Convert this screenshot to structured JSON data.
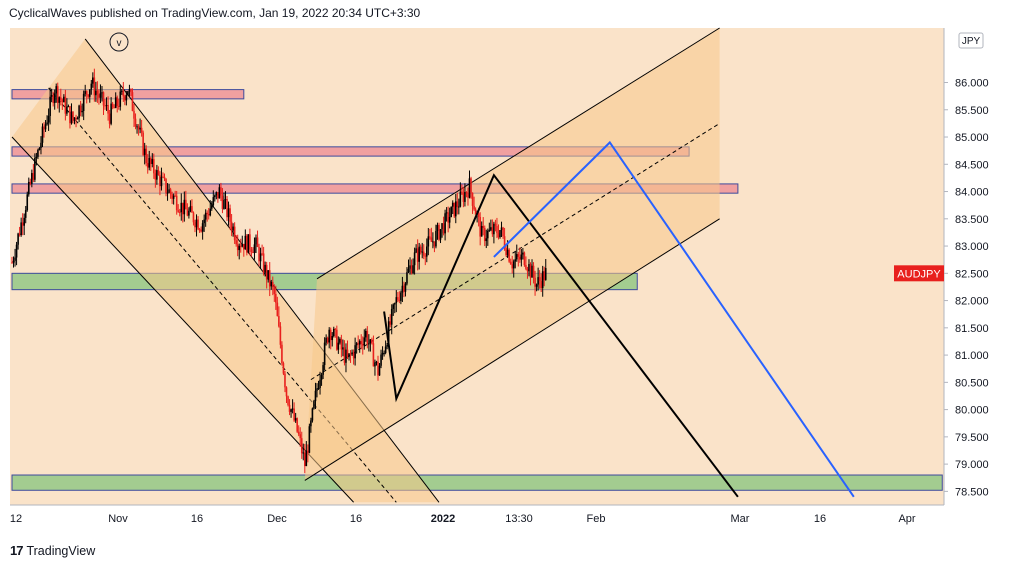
{
  "header": {
    "text": "CyclicalWaves published on TradingView.com, Jan 19, 2022 20:34 UTC+3:30"
  },
  "footer": {
    "logo": "17",
    "brand": "TradingView"
  },
  "colors": {
    "background": "#fae3c9",
    "candle_up": "#000000",
    "candle_down": "#e8201d",
    "channel_fill": "#f7c98b",
    "red_zone": "#f0a0a0",
    "green_zone": "#a3cc90",
    "blue_line": "#2962ff",
    "symbol_badge": "#e8201d"
  },
  "chart_data": {
    "type": "candlestick",
    "symbol": "AUDJPY",
    "currency_label": "JPY",
    "wave_label": "v",
    "ylim": [
      78.25,
      87.0
    ],
    "y_ticks": [
      "86.000",
      "85.500",
      "85.000",
      "84.500",
      "84.000",
      "83.500",
      "83.000",
      "82.500",
      "82.000",
      "81.500",
      "81.000",
      "80.500",
      "80.000",
      "79.500",
      "79.000",
      "78.500"
    ],
    "x_ticks": [
      "12",
      "Nov",
      "16",
      "Dec",
      "16",
      "2022",
      "13:30",
      "Feb",
      "Mar",
      "16",
      "Apr"
    ],
    "price_badge": "AUDJPY",
    "price_badge_value": 82.5,
    "zones": [
      {
        "kind": "resistance",
        "low": 85.7,
        "high": 85.87,
        "start": 0,
        "end": 76
      },
      {
        "kind": "resistance",
        "low": 84.65,
        "high": 84.82,
        "start": 0,
        "end": 222
      },
      {
        "kind": "resistance",
        "low": 83.97,
        "high": 84.14,
        "start": 0,
        "end": 238
      },
      {
        "kind": "support",
        "low": 82.2,
        "high": 82.5,
        "start": 0,
        "end": 205
      },
      {
        "kind": "support",
        "low": 78.52,
        "high": 78.8,
        "start": 0,
        "end": 305
      }
    ],
    "series": [
      {
        "points": [
          [
            0,
            82.7
          ],
          [
            8,
            84.6
          ],
          [
            14,
            85.9
          ],
          [
            20,
            85.3
          ],
          [
            26,
            86.0
          ],
          [
            32,
            85.4
          ],
          [
            38,
            85.9
          ],
          [
            44,
            84.6
          ],
          [
            50,
            84.1
          ],
          [
            56,
            83.7
          ],
          [
            62,
            83.4
          ],
          [
            68,
            84.0
          ],
          [
            74,
            83.1
          ],
          [
            80,
            83.0
          ],
          [
            86,
            82.1
          ],
          [
            90,
            80.3
          ],
          [
            94,
            79.5
          ],
          [
            96,
            79.0
          ],
          [
            100,
            80.4
          ],
          [
            104,
            81.5
          ],
          [
            110,
            80.9
          ],
          [
            116,
            81.4
          ],
          [
            120,
            80.7
          ],
          [
            126,
            82.0
          ],
          [
            132,
            82.8
          ],
          [
            138,
            83.1
          ],
          [
            144,
            83.6
          ],
          [
            150,
            84.1
          ],
          [
            154,
            83.2
          ],
          [
            160,
            83.3
          ],
          [
            164,
            82.7
          ],
          [
            168,
            82.8
          ],
          [
            172,
            82.3
          ],
          [
            175,
            82.5
          ]
        ]
      }
    ],
    "channels": [
      {
        "name": "down-channel",
        "upper": [
          [
            24,
            86.8
          ],
          [
            140,
            78.3
          ]
        ],
        "lower": [
          [
            0,
            85.0
          ],
          [
            112,
            78.3
          ]
        ]
      },
      {
        "name": "up-channel",
        "upper": [
          [
            100,
            82.4
          ],
          [
            232,
            87.0
          ]
        ],
        "lower": [
          [
            96,
            78.7
          ],
          [
            232,
            83.5
          ]
        ]
      }
    ],
    "projections": [
      {
        "name": "black-path",
        "color": "#000000",
        "points": [
          [
            122,
            81.8
          ],
          [
            126,
            80.2
          ],
          [
            158,
            84.3
          ],
          [
            238,
            78.4
          ]
        ]
      },
      {
        "name": "blue-path",
        "color": "#2962ff",
        "points": [
          [
            158,
            82.8
          ],
          [
            196,
            84.9
          ],
          [
            276,
            78.4
          ]
        ]
      }
    ]
  }
}
